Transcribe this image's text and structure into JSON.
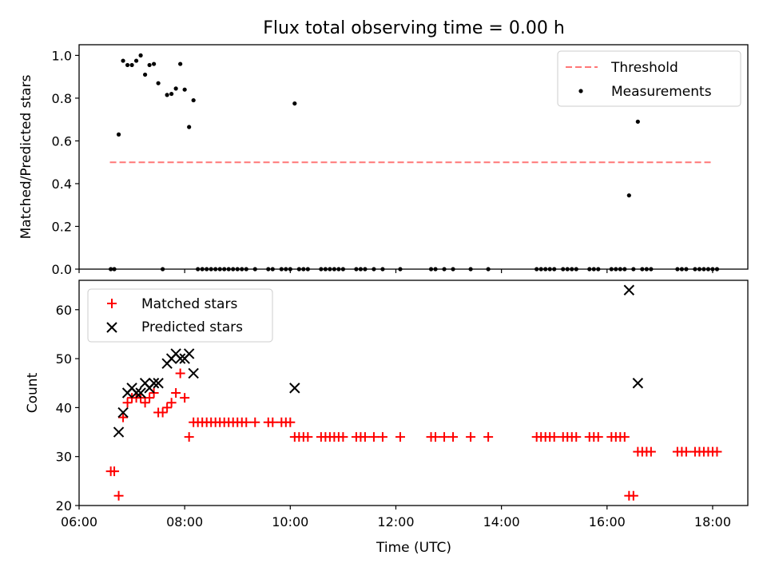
{
  "chart_data": [
    {
      "type": "scatter",
      "title": "Flux total observing time = 0.00 h",
      "xlabel": "",
      "ylabel": "Matched/Predicted stars",
      "xlim": [
        "06:00",
        "18:40"
      ],
      "ylim": [
        0,
        1.05
      ],
      "yticks": [
        "0.0",
        "0.2",
        "0.4",
        "0.6",
        "0.8",
        "1.0"
      ],
      "legend_position": "top-right",
      "threshold": {
        "name": "Threshold",
        "value": 0.5,
        "x_range": [
          "06:35",
          "18:00"
        ],
        "color": "#ff7777",
        "style": "dashed"
      },
      "series": [
        {
          "name": "Measurements",
          "color": "#000000",
          "marker": "dot",
          "points": [
            [
              "06:36",
              0
            ],
            [
              "06:40",
              0
            ],
            [
              "06:45",
              0.63
            ],
            [
              "06:50",
              0.975
            ],
            [
              "06:55",
              0.955
            ],
            [
              "07:00",
              0.955
            ],
            [
              "07:05",
              0.975
            ],
            [
              "07:10",
              1.0
            ],
            [
              "07:15",
              0.91
            ],
            [
              "07:20",
              0.955
            ],
            [
              "07:25",
              0.96
            ],
            [
              "07:30",
              0.87
            ],
            [
              "07:35",
              0
            ],
            [
              "07:40",
              0.815
            ],
            [
              "07:45",
              0.82
            ],
            [
              "07:50",
              0.845
            ],
            [
              "07:55",
              0.96
            ],
            [
              "08:00",
              0.84
            ],
            [
              "08:05",
              0.665
            ],
            [
              "08:10",
              0.79
            ],
            [
              "08:15",
              0
            ],
            [
              "08:20",
              0
            ],
            [
              "08:25",
              0
            ],
            [
              "08:30",
              0
            ],
            [
              "08:35",
              0
            ],
            [
              "08:40",
              0
            ],
            [
              "08:45",
              0
            ],
            [
              "08:50",
              0
            ],
            [
              "08:55",
              0
            ],
            [
              "09:00",
              0
            ],
            [
              "09:05",
              0
            ],
            [
              "09:10",
              0
            ],
            [
              "09:20",
              0
            ],
            [
              "09:35",
              0
            ],
            [
              "09:40",
              0
            ],
            [
              "09:50",
              0
            ],
            [
              "09:55",
              0
            ],
            [
              "10:00",
              0
            ],
            [
              "10:05",
              0.775
            ],
            [
              "10:10",
              0
            ],
            [
              "10:15",
              0
            ],
            [
              "10:20",
              0
            ],
            [
              "10:35",
              0
            ],
            [
              "10:40",
              0
            ],
            [
              "10:45",
              0
            ],
            [
              "10:50",
              0
            ],
            [
              "10:55",
              0
            ],
            [
              "11:00",
              0
            ],
            [
              "11:15",
              0
            ],
            [
              "11:20",
              0
            ],
            [
              "11:25",
              0
            ],
            [
              "11:35",
              0
            ],
            [
              "11:45",
              0
            ],
            [
              "12:05",
              0
            ],
            [
              "12:40",
              0
            ],
            [
              "12:45",
              0
            ],
            [
              "12:55",
              0
            ],
            [
              "13:05",
              0
            ],
            [
              "13:25",
              0
            ],
            [
              "13:45",
              0
            ],
            [
              "14:40",
              0
            ],
            [
              "14:45",
              0
            ],
            [
              "14:50",
              0
            ],
            [
              "14:55",
              0
            ],
            [
              "15:00",
              0
            ],
            [
              "15:10",
              0
            ],
            [
              "15:15",
              0
            ],
            [
              "15:20",
              0
            ],
            [
              "15:25",
              0
            ],
            [
              "15:40",
              0
            ],
            [
              "15:45",
              0
            ],
            [
              "15:50",
              0
            ],
            [
              "16:05",
              0
            ],
            [
              "16:10",
              0
            ],
            [
              "16:15",
              0
            ],
            [
              "16:20",
              0
            ],
            [
              "16:25",
              0.345
            ],
            [
              "16:30",
              0
            ],
            [
              "16:35",
              0.69
            ],
            [
              "16:40",
              0
            ],
            [
              "16:45",
              0
            ],
            [
              "16:50",
              0
            ],
            [
              "17:20",
              0
            ],
            [
              "17:25",
              0
            ],
            [
              "17:30",
              0
            ],
            [
              "17:40",
              0
            ],
            [
              "17:45",
              0
            ],
            [
              "17:50",
              0
            ],
            [
              "17:55",
              0
            ],
            [
              "18:00",
              0
            ],
            [
              "18:05",
              0
            ]
          ]
        }
      ]
    },
    {
      "type": "scatter",
      "title": "",
      "xlabel": "Time (UTC)",
      "ylabel": "Count",
      "xlim": [
        "06:00",
        "18:40"
      ],
      "ylim": [
        20,
        66
      ],
      "yticks": [
        "20",
        "30",
        "40",
        "50",
        "60"
      ],
      "xticks": [
        "06:00",
        "08:00",
        "10:00",
        "12:00",
        "14:00",
        "16:00",
        "18:00"
      ],
      "legend_position": "top-left",
      "series": [
        {
          "name": "Matched stars",
          "color": "#ff0000",
          "marker": "plus",
          "points": [
            [
              "06:36",
              27
            ],
            [
              "06:40",
              27
            ],
            [
              "06:45",
              22
            ],
            [
              "06:50",
              38
            ],
            [
              "06:55",
              41
            ],
            [
              "07:00",
              42
            ],
            [
              "07:05",
              42
            ],
            [
              "07:10",
              42
            ],
            [
              "07:15",
              41
            ],
            [
              "07:20",
              42
            ],
            [
              "07:25",
              43
            ],
            [
              "07:30",
              39
            ],
            [
              "07:35",
              39
            ],
            [
              "07:40",
              40
            ],
            [
              "07:45",
              41
            ],
            [
              "07:50",
              43
            ],
            [
              "07:55",
              47
            ],
            [
              "08:00",
              42
            ],
            [
              "08:05",
              34
            ],
            [
              "08:10",
              37
            ],
            [
              "08:15",
              37
            ],
            [
              "08:20",
              37
            ],
            [
              "08:25",
              37
            ],
            [
              "08:30",
              37
            ],
            [
              "08:35",
              37
            ],
            [
              "08:40",
              37
            ],
            [
              "08:45",
              37
            ],
            [
              "08:50",
              37
            ],
            [
              "08:55",
              37
            ],
            [
              "09:00",
              37
            ],
            [
              "09:05",
              37
            ],
            [
              "09:10",
              37
            ],
            [
              "09:20",
              37
            ],
            [
              "09:35",
              37
            ],
            [
              "09:40",
              37
            ],
            [
              "09:50",
              37
            ],
            [
              "09:55",
              37
            ],
            [
              "10:00",
              37
            ],
            [
              "10:05",
              34
            ],
            [
              "10:10",
              34
            ],
            [
              "10:15",
              34
            ],
            [
              "10:20",
              34
            ],
            [
              "10:35",
              34
            ],
            [
              "10:40",
              34
            ],
            [
              "10:45",
              34
            ],
            [
              "10:50",
              34
            ],
            [
              "10:55",
              34
            ],
            [
              "11:00",
              34
            ],
            [
              "11:15",
              34
            ],
            [
              "11:20",
              34
            ],
            [
              "11:25",
              34
            ],
            [
              "11:35",
              34
            ],
            [
              "11:45",
              34
            ],
            [
              "12:05",
              34
            ],
            [
              "12:40",
              34
            ],
            [
              "12:45",
              34
            ],
            [
              "12:55",
              34
            ],
            [
              "13:05",
              34
            ],
            [
              "13:25",
              34
            ],
            [
              "13:45",
              34
            ],
            [
              "14:40",
              34
            ],
            [
              "14:45",
              34
            ],
            [
              "14:50",
              34
            ],
            [
              "14:55",
              34
            ],
            [
              "15:00",
              34
            ],
            [
              "15:10",
              34
            ],
            [
              "15:15",
              34
            ],
            [
              "15:20",
              34
            ],
            [
              "15:25",
              34
            ],
            [
              "15:40",
              34
            ],
            [
              "15:45",
              34
            ],
            [
              "15:50",
              34
            ],
            [
              "16:05",
              34
            ],
            [
              "16:10",
              34
            ],
            [
              "16:15",
              34
            ],
            [
              "16:20",
              34
            ],
            [
              "16:25",
              22
            ],
            [
              "16:30",
              22
            ],
            [
              "16:35",
              31
            ],
            [
              "16:40",
              31
            ],
            [
              "16:45",
              31
            ],
            [
              "16:50",
              31
            ],
            [
              "17:20",
              31
            ],
            [
              "17:25",
              31
            ],
            [
              "17:30",
              31
            ],
            [
              "17:40",
              31
            ],
            [
              "17:45",
              31
            ],
            [
              "17:50",
              31
            ],
            [
              "17:55",
              31
            ],
            [
              "18:00",
              31
            ],
            [
              "18:05",
              31
            ]
          ]
        },
        {
          "name": "Predicted stars",
          "color": "#000000",
          "marker": "x",
          "points": [
            [
              "06:45",
              35
            ],
            [
              "06:50",
              39
            ],
            [
              "06:55",
              43
            ],
            [
              "07:00",
              44
            ],
            [
              "07:05",
              43
            ],
            [
              "07:10",
              43
            ],
            [
              "07:15",
              45
            ],
            [
              "07:20",
              44
            ],
            [
              "07:25",
              45
            ],
            [
              "07:30",
              45
            ],
            [
              "07:40",
              49
            ],
            [
              "07:45",
              50
            ],
            [
              "07:50",
              51
            ],
            [
              "07:55",
              50
            ],
            [
              "08:00",
              50
            ],
            [
              "08:05",
              51
            ],
            [
              "08:10",
              47
            ],
            [
              "10:05",
              44
            ],
            [
              "16:25",
              64
            ],
            [
              "16:35",
              45
            ]
          ]
        }
      ]
    }
  ]
}
